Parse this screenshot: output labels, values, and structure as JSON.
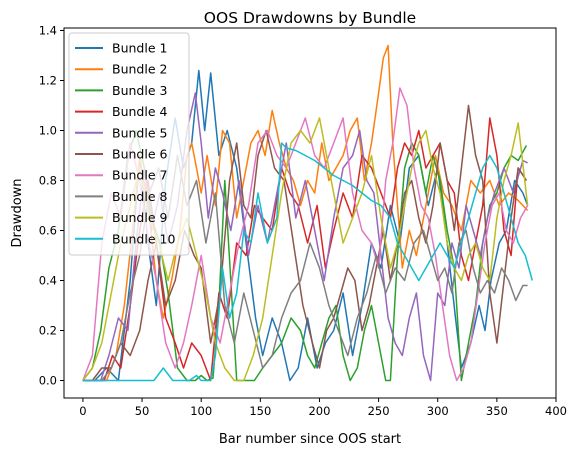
{
  "chart_data": {
    "type": "line",
    "title": "OOS Drawdowns by Bundle",
    "xlabel": "Bar number since OOS start",
    "ylabel": "Drawdown",
    "xlim": [
      -16,
      400
    ],
    "ylim": [
      -0.07,
      1.41
    ],
    "xticks": [
      0,
      50,
      100,
      150,
      200,
      250,
      300,
      350,
      400
    ],
    "yticks": [
      0.0,
      0.2,
      0.4,
      0.6,
      0.8,
      1.0,
      1.2,
      1.4
    ],
    "xtick_labels": [
      "0",
      "50",
      "100",
      "150",
      "200",
      "250",
      "300",
      "350",
      "400"
    ],
    "ytick_labels": [
      "0.0",
      "0.2",
      "0.4",
      "0.6",
      "0.8",
      "1.0",
      "1.2",
      "1.4"
    ],
    "grid": false,
    "legend_position": "upper-left",
    "series": [
      {
        "name": "Bundle 1",
        "color": "#1f77b4",
        "x": [
          0,
          10,
          20,
          30,
          40,
          48,
          55,
          62,
          70,
          78,
          85,
          92,
          98,
          103,
          108,
          115,
          122,
          130,
          138,
          146,
          152,
          160,
          168,
          175,
          182,
          190,
          198,
          205,
          212,
          220,
          228,
          236,
          244,
          252,
          260,
          268,
          276,
          284,
          292,
          300,
          308,
          315,
          320,
          328,
          335,
          340,
          345,
          352,
          358,
          365,
          372,
          376
        ],
        "y": [
          0,
          0,
          0.05,
          0,
          0.4,
          0.9,
          0.55,
          0.3,
          0.8,
          1.05,
          0.85,
          0.95,
          1.24,
          1.0,
          1.23,
          0.9,
          1.0,
          0.85,
          0.55,
          0.25,
          0.1,
          0.25,
          0.15,
          0,
          0.05,
          0.25,
          0.05,
          0.15,
          0.2,
          0.35,
          0.1,
          0.3,
          0.55,
          0.45,
          0.7,
          0.55,
          0.85,
          0.9,
          0.7,
          0.85,
          0.55,
          0.25,
          0.05,
          0.15,
          0.3,
          0.2,
          0.4,
          0.55,
          0.6,
          0.8,
          0.75,
          0.7
        ]
      },
      {
        "name": "Bundle 2",
        "color": "#ff7f0e",
        "x": [
          0,
          10,
          20,
          28,
          35,
          42,
          48,
          55,
          62,
          68,
          75,
          82,
          88,
          92,
          96,
          100,
          105,
          112,
          118,
          124,
          130,
          136,
          142,
          148,
          154,
          160,
          166,
          172,
          178,
          184,
          190,
          196,
          202,
          208,
          214,
          220,
          226,
          232,
          238,
          244,
          250,
          254,
          258,
          262,
          266,
          270,
          276,
          282,
          290,
          298,
          305,
          312,
          320,
          328,
          336,
          344,
          352,
          360,
          368,
          376
        ],
        "y": [
          0,
          0,
          0,
          0.1,
          0.3,
          0.6,
          0.9,
          0.7,
          0.4,
          0.25,
          0.4,
          0.6,
          0.9,
          0.95,
          0.85,
          0.75,
          0.9,
          0.7,
          1.0,
          0.95,
          0.65,
          0.8,
          0.95,
          1.0,
          0.9,
          1.08,
          0.95,
          0.85,
          0.8,
          0.7,
          0.8,
          0.75,
          0.95,
          0.8,
          0.85,
          0.9,
          1.0,
          1.05,
          0.8,
          0.95,
          1.15,
          1.29,
          1.34,
          0.95,
          0.7,
          0.45,
          0.6,
          0.5,
          0.7,
          0.9,
          0.75,
          0.7,
          0.6,
          0.8,
          0.75,
          0.8,
          0.7,
          0.75,
          0.72,
          0.68
        ]
      },
      {
        "name": "Bundle 3",
        "color": "#2ca02c",
        "x": [
          0,
          8,
          15,
          22,
          30,
          38,
          45,
          52,
          58,
          65,
          72,
          80,
          88,
          95,
          100,
          105,
          110,
          115,
          120,
          125,
          130,
          138,
          145,
          152,
          160,
          168,
          176,
          184,
          190,
          196,
          202,
          208,
          214,
          220,
          226,
          232,
          238,
          244,
          250,
          256,
          260,
          266,
          272,
          278,
          284,
          290,
          296,
          302,
          308,
          314,
          320,
          326,
          332,
          338,
          344,
          350,
          356,
          362,
          368,
          375
        ],
        "y": [
          0,
          0.05,
          0.2,
          0.45,
          0.6,
          0.9,
          1.0,
          0.85,
          0.65,
          0.55,
          0.35,
          0.05,
          0,
          0,
          0.02,
          0,
          0.01,
          0.3,
          0.8,
          0.4,
          0.0,
          0.0,
          0.0,
          0.05,
          0.1,
          0.15,
          0.25,
          0.2,
          0.1,
          0.05,
          0.15,
          0.25,
          0.3,
          0.1,
          0.0,
          0.05,
          0.2,
          0.3,
          0.15,
          0.0,
          0.0,
          0.5,
          0.85,
          0.95,
          0.9,
          0.75,
          0.9,
          0.8,
          0.6,
          0.45,
          0.0,
          0.15,
          0.3,
          0.55,
          0.7,
          0.75,
          0.85,
          0.9,
          0.88,
          0.94
        ]
      },
      {
        "name": "Bundle 4",
        "color": "#d62728",
        "x": [
          0,
          10,
          18,
          25,
          32,
          40,
          48,
          55,
          62,
          70,
          78,
          85,
          92,
          100,
          108,
          115,
          122,
          130,
          138,
          145,
          152,
          160,
          168,
          175,
          182,
          190,
          198,
          205,
          212,
          220,
          228,
          236,
          244,
          252,
          260,
          266,
          272,
          278,
          284,
          290,
          296,
          302,
          308,
          314,
          320,
          326,
          332,
          338,
          344,
          350,
          356,
          362,
          368,
          375
        ],
        "y": [
          0,
          0,
          0,
          0.1,
          0.05,
          0.3,
          0.6,
          0.8,
          0.55,
          0.25,
          0.15,
          0.05,
          0.15,
          0.1,
          0.0,
          0.35,
          0.25,
          0.55,
          0.5,
          0.7,
          0.65,
          0.6,
          0.85,
          0.75,
          0.7,
          0.55,
          0.7,
          0.45,
          0.6,
          0.75,
          0.65,
          0.9,
          0.85,
          0.75,
          0.65,
          0.85,
          0.95,
          0.9,
          1.0,
          0.85,
          0.9,
          0.95,
          0.8,
          0.75,
          0.5,
          0.4,
          0.55,
          0.7,
          1.05,
          0.9,
          0.6,
          0.5,
          0.85,
          0.8
        ]
      },
      {
        "name": "Bundle 5",
        "color": "#9467bd",
        "x": [
          0,
          8,
          15,
          22,
          30,
          38,
          45,
          52,
          58,
          65,
          72,
          80,
          88,
          95,
          100,
          106,
          112,
          118,
          125,
          132,
          140,
          148,
          156,
          164,
          172,
          180,
          188,
          196,
          204,
          212,
          220,
          228,
          234,
          240,
          246,
          252,
          258,
          264,
          270,
          276,
          282,
          288,
          294,
          300,
          306,
          312,
          318,
          324,
          330,
          336,
          342,
          348,
          356,
          364,
          372,
          376
        ],
        "y": [
          0,
          0,
          0,
          0.1,
          0.25,
          0.2,
          0.55,
          0.85,
          0.6,
          0.75,
          0.55,
          0.7,
          1.0,
          1.15,
          0.95,
          0.65,
          0.85,
          0.75,
          0.6,
          0.8,
          0.5,
          0.7,
          0.55,
          0.75,
          0.95,
          0.65,
          0.8,
          0.6,
          0.4,
          0.65,
          0.85,
          0.9,
          1.0,
          0.8,
          0.75,
          0.5,
          0.25,
          0.15,
          0.1,
          0.25,
          0.35,
          0.1,
          0.0,
          0.35,
          0.3,
          0.55,
          0.45,
          0.7,
          0.6,
          0.5,
          0.65,
          0.75,
          0.85,
          0.75,
          0.88,
          0.87
        ]
      },
      {
        "name": "Bundle 6",
        "color": "#8c564b",
        "x": [
          0,
          8,
          16,
          24,
          32,
          40,
          48,
          55,
          62,
          70,
          78,
          86,
          94,
          100,
          108,
          116,
          124,
          130,
          136,
          142,
          148,
          155,
          162,
          170,
          178,
          186,
          194,
          200,
          206,
          212,
          218,
          224,
          230,
          236,
          242,
          248,
          254,
          260,
          266,
          272,
          278,
          284,
          290,
          296,
          302,
          308,
          314,
          320,
          326,
          332,
          338,
          344,
          350,
          356,
          362,
          368,
          375
        ],
        "y": [
          0,
          0,
          0.05,
          0.05,
          0.15,
          0.1,
          0.2,
          0.4,
          0.55,
          0.3,
          0.4,
          0.6,
          0.5,
          0.45,
          0.15,
          0.35,
          0.8,
          0.95,
          0.7,
          0.65,
          0.9,
          1.0,
          0.85,
          0.8,
          0.55,
          0.3,
          0.15,
          0.05,
          0.2,
          0.25,
          0.35,
          0.45,
          0.4,
          0.2,
          0.3,
          0.45,
          0.6,
          0.4,
          0.55,
          0.75,
          0.8,
          0.65,
          0.55,
          0.7,
          0.95,
          0.8,
          0.6,
          0.85,
          1.1,
          0.9,
          0.8,
          0.35,
          0.15,
          0.4,
          0.65,
          0.85,
          0.8
        ]
      },
      {
        "name": "Bundle 7",
        "color": "#e377c2",
        "x": [
          0,
          8,
          16,
          24,
          32,
          40,
          48,
          56,
          62,
          70,
          78,
          85,
          92,
          100,
          108,
          116,
          124,
          132,
          140,
          148,
          156,
          164,
          172,
          180,
          188,
          196,
          204,
          212,
          220,
          228,
          236,
          244,
          250,
          256,
          262,
          268,
          274,
          280,
          286,
          292,
          298,
          304,
          310,
          316,
          322,
          328,
          334,
          340,
          346,
          352,
          358,
          364,
          370,
          376
        ],
        "y": [
          0,
          0.1,
          0.55,
          0.75,
          0.65,
          0.95,
          0.8,
          0.55,
          0.4,
          0.15,
          0.05,
          0.15,
          0.3,
          0.5,
          0.25,
          0.15,
          0.35,
          0.55,
          0.7,
          0.95,
          1.0,
          0.9,
          0.85,
          0.95,
          1.05,
          0.9,
          0.85,
          0.95,
          1.05,
          0.75,
          0.6,
          0.55,
          0.45,
          0.8,
          0.95,
          1.17,
          1.1,
          0.85,
          0.7,
          0.65,
          0.5,
          0.3,
          0.1,
          0.0,
          0.05,
          0.15,
          0.35,
          0.55,
          0.7,
          0.75,
          0.6,
          0.55,
          0.65,
          0.7
        ]
      },
      {
        "name": "Bundle 8",
        "color": "#7f7f7f",
        "x": [
          0,
          8,
          16,
          24,
          32,
          40,
          48,
          56,
          64,
          72,
          80,
          88,
          96,
          104,
          112,
          120,
          128,
          136,
          144,
          152,
          160,
          168,
          176,
          184,
          192,
          200,
          208,
          216,
          224,
          232,
          240,
          248,
          256,
          264,
          272,
          280,
          288,
          294,
          300,
          306,
          312,
          318,
          324,
          330,
          336,
          342,
          348,
          354,
          360,
          366,
          372,
          376
        ],
        "y": [
          0,
          0,
          0,
          0.05,
          0.15,
          0.35,
          0.5,
          0.75,
          0.85,
          0.65,
          0.9,
          0.7,
          0.8,
          0.55,
          0.75,
          0.3,
          0.15,
          0.35,
          0.2,
          0.05,
          0.1,
          0.25,
          0.35,
          0.4,
          0.55,
          0.45,
          0.3,
          0.2,
          0.1,
          0.25,
          0.35,
          0.5,
          0.35,
          0.45,
          0.4,
          0.55,
          0.6,
          0.5,
          0.4,
          0.45,
          0.35,
          0.55,
          0.6,
          0.45,
          0.35,
          0.4,
          0.35,
          0.45,
          0.4,
          0.32,
          0.38,
          0.38
        ]
      },
      {
        "name": "Bundle 9",
        "color": "#bcbd22",
        "x": [
          0,
          8,
          16,
          24,
          32,
          40,
          48,
          56,
          64,
          72,
          80,
          88,
          96,
          104,
          112,
          120,
          128,
          136,
          144,
          152,
          160,
          168,
          176,
          184,
          192,
          200,
          208,
          214,
          220,
          228,
          236,
          244,
          252,
          260,
          266,
          272,
          278,
          284,
          290,
          296,
          302,
          308,
          314,
          320,
          326,
          332,
          338,
          344,
          350,
          356,
          362,
          368,
          376
        ],
        "y": [
          0,
          0.05,
          0.15,
          0.35,
          0.55,
          0.7,
          0.85,
          0.65,
          0.55,
          0.4,
          0.55,
          0.65,
          0.5,
          0.35,
          0.15,
          0.05,
          0.0,
          0.0,
          0.1,
          0.25,
          0.5,
          0.75,
          0.95,
          1.0,
          0.95,
          1.05,
          0.85,
          0.7,
          0.55,
          0.65,
          0.75,
          0.9,
          0.65,
          0.45,
          0.55,
          0.7,
          0.85,
          0.95,
          1.0,
          0.85,
          0.75,
          0.55,
          0.45,
          0.4,
          0.5,
          0.55,
          0.45,
          0.4,
          0.65,
          0.8,
          0.9,
          1.03,
          0.7
        ]
      },
      {
        "name": "Bundle 10",
        "color": "#17becf",
        "x": [
          0,
          10,
          20,
          28,
          36,
          44,
          52,
          60,
          68,
          76,
          84,
          90,
          96,
          100,
          104,
          108,
          112,
          118,
          124,
          130,
          136,
          142,
          148,
          156,
          164,
          168,
          172,
          180,
          188,
          196,
          204,
          212,
          220,
          228,
          236,
          244,
          252,
          260,
          266,
          272,
          278,
          284,
          290,
          296,
          302,
          308,
          314,
          320,
          326,
          332,
          338,
          344,
          350,
          356,
          362,
          368,
          374,
          380
        ],
        "y": [
          0,
          0,
          0,
          0,
          0,
          0,
          0,
          0,
          0.05,
          0,
          0,
          0,
          0.02,
          0,
          0,
          0,
          0.1,
          0.45,
          0.25,
          0.35,
          0.6,
          0.55,
          0.75,
          0.55,
          0.65,
          0.95,
          0.93,
          0.92,
          0.9,
          0.88,
          0.85,
          0.82,
          0.8,
          0.78,
          0.75,
          0.72,
          0.7,
          0.65,
          0.55,
          0.5,
          0.45,
          0.4,
          0.45,
          0.5,
          0.55,
          0.5,
          0.45,
          0.55,
          0.65,
          0.75,
          0.85,
          0.9,
          0.85,
          0.75,
          0.65,
          0.55,
          0.5,
          0.4
        ]
      }
    ]
  }
}
